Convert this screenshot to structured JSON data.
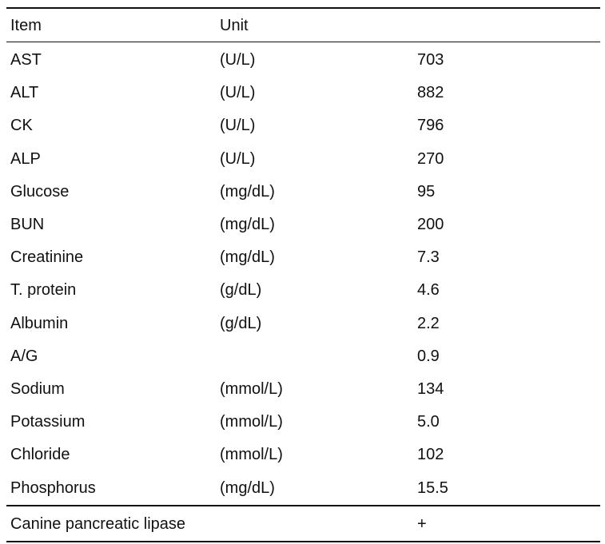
{
  "table": {
    "header": [
      "Item",
      "Unit"
    ],
    "rows": [
      [
        "AST",
        "(U/L)",
        "703"
      ],
      [
        "ALT",
        "(U/L)",
        "882"
      ],
      [
        "CK",
        "(U/L)",
        "796"
      ],
      [
        "ALP",
        "(U/L)",
        "270"
      ],
      [
        "Glucose",
        "(mg/dL)",
        "95"
      ],
      [
        "BUN",
        "(mg/dL)",
        "200"
      ],
      [
        "Creatinine",
        "(mg/dL)",
        "7.3"
      ],
      [
        "T. protein",
        "(g/dL)",
        "4.6"
      ],
      [
        "Albumin",
        "(g/dL)",
        "2.2"
      ],
      [
        "A/G",
        null,
        "0.9"
      ],
      [
        "Sodium",
        "(mmol/L)",
        "134"
      ],
      [
        "Potassium",
        "(mmol/L)",
        "5.0"
      ],
      [
        "Chloride",
        "(mmol/L)",
        "102"
      ],
      [
        "Phosphorus",
        "(mg/dL)",
        "15.5"
      ]
    ],
    "footer_rows": [
      [
        "Canine pancreatic lipase",
        null,
        "+"
      ]
    ]
  }
}
